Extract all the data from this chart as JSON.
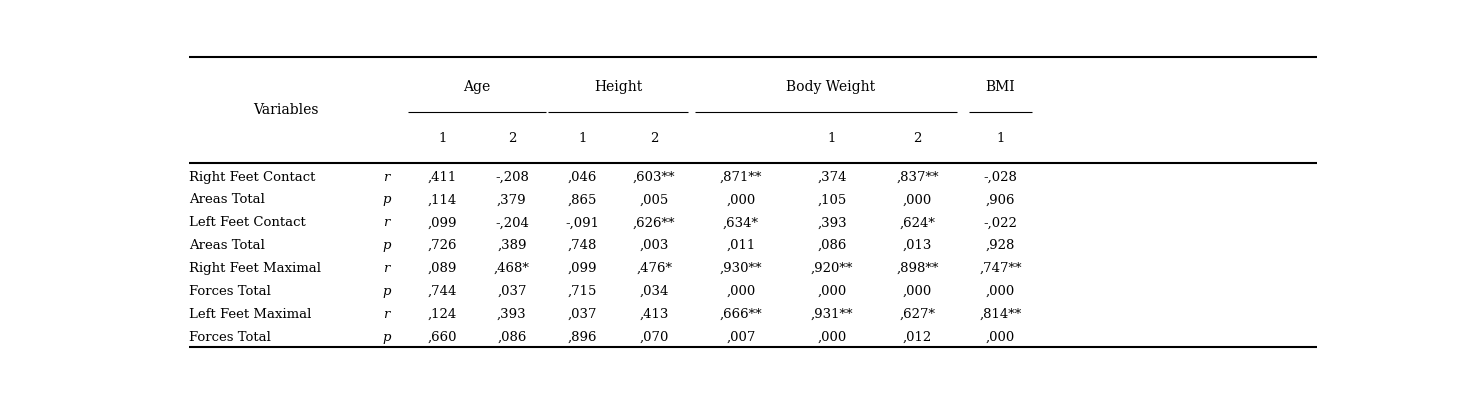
{
  "col_groups": [
    {
      "label": "Age",
      "start": 2,
      "end": 3
    },
    {
      "label": "Height",
      "start": 4,
      "end": 5
    },
    {
      "label": "Body Weight",
      "start": 6,
      "end": 8
    },
    {
      "label": "BMI",
      "start": 9,
      "end": 9
    }
  ],
  "sub_headers": [
    "",
    "",
    "1",
    "2",
    "1",
    "2",
    "",
    "1",
    "2",
    "1"
  ],
  "row_labels": [
    [
      "Right Feet Contact",
      "r",
      "Areas Total",
      "p"
    ],
    [
      "Left Feet Contact",
      "r",
      "Areas Total",
      "p"
    ],
    [
      "Right Feet Maximal",
      "r",
      "Forces Total",
      "p"
    ],
    [
      "Left Feet Maximal",
      "r",
      "Forces Total",
      "p"
    ]
  ],
  "data": [
    [
      ",411",
      "-,208",
      ",046",
      ",603**",
      ",871**",
      ",374",
      ",837**",
      "-,028"
    ],
    [
      ",114",
      ",379",
      ",865",
      ",005",
      ",000",
      ",105",
      ",000",
      ",906"
    ],
    [
      ",099",
      "-,204",
      "-,091",
      ",626**",
      ",634*",
      ",393",
      ",624*",
      "-,022"
    ],
    [
      ",726",
      ",389",
      ",748",
      ",003",
      ",011",
      ",086",
      ",013",
      ",928"
    ],
    [
      ",089",
      ",468*",
      ",099",
      ",476*",
      ",930**",
      ",920**",
      ",898**",
      ",747**"
    ],
    [
      ",744",
      ",037",
      ",715",
      ",034",
      ",000",
      ",000",
      ",000",
      ",000"
    ],
    [
      ",124",
      ",393",
      ",037",
      ",413",
      ",666**",
      ",931**",
      ",627*",
      ",814**"
    ],
    [
      ",660",
      ",086",
      ",896",
      ",070",
      ",007",
      ",000",
      ",012",
      ",000"
    ]
  ],
  "bg_color": "#ffffff",
  "font_size": 9.5,
  "header_font_size": 10
}
